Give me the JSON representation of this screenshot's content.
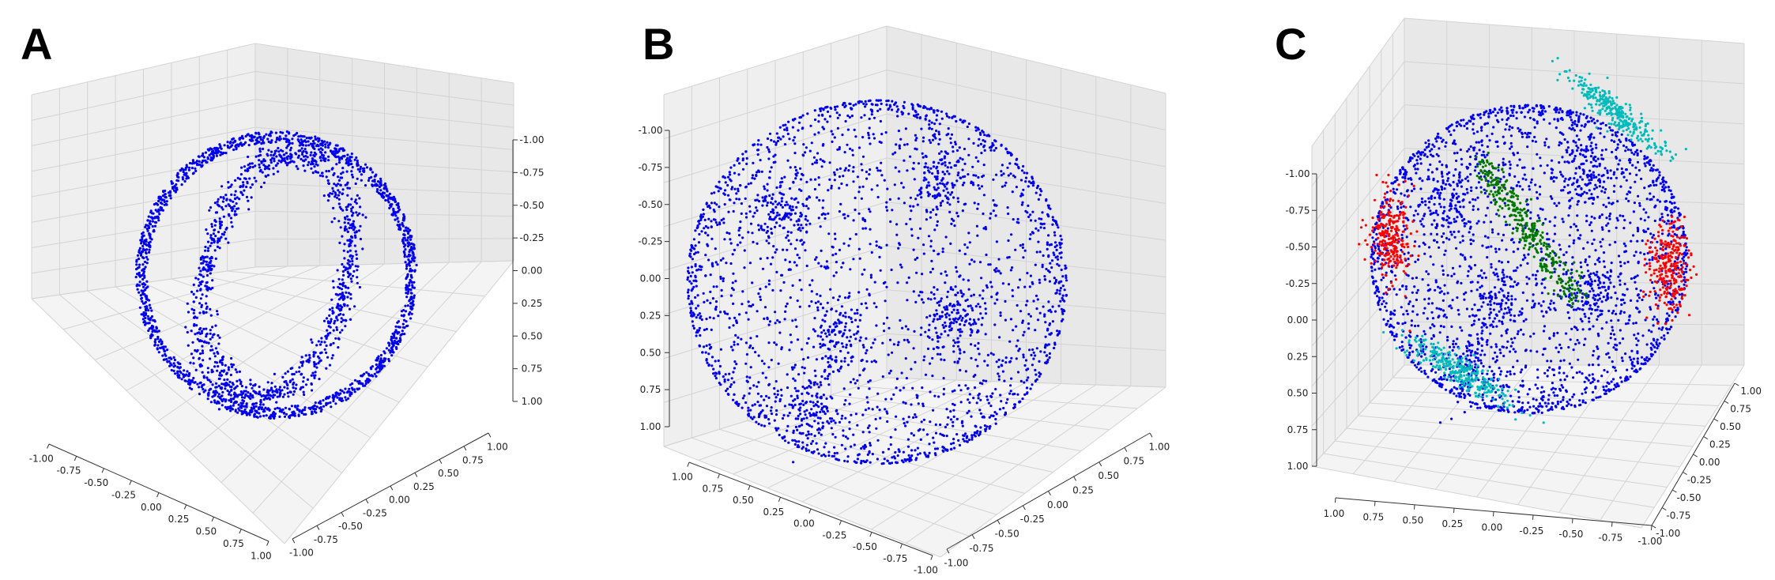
{
  "figure": {
    "background": "#ffffff",
    "pane_color": "#efefef",
    "grid_color": "#d3d3d3"
  },
  "chart_data": [
    {
      "panel": "A",
      "type": "scatter",
      "projection": "3d",
      "marker_color": "#0000ee",
      "x_ticks": [
        "-1.00",
        "-0.75",
        "-0.50",
        "-0.25",
        "0.00",
        "0.25",
        "0.50",
        "0.75",
        "1.00"
      ],
      "y_ticks": [
        "-1.00",
        "-0.75",
        "-0.50",
        "-0.25",
        "0.00",
        "0.25",
        "0.50",
        "0.75",
        "1.00"
      ],
      "z_ticks": [
        "1.00",
        "0.75",
        "0.50",
        "0.25",
        "0.00",
        "-0.25",
        "-0.50",
        "-0.75",
        "-1.00"
      ],
      "xlim": [
        -1,
        1
      ],
      "ylim": [
        -1,
        1
      ],
      "zlim": [
        -1,
        1
      ],
      "grid": true,
      "series": [
        {
          "color": "#0000ee",
          "description_points": 2500
        }
      ]
    },
    {
      "panel": "B",
      "type": "scatter",
      "projection": "3d",
      "marker_color": "#0000ee",
      "x_ticks": [
        "1.00",
        "0.75",
        "0.50",
        "0.25",
        "0.00",
        "-0.25",
        "-0.50",
        "-0.75",
        "-1.00"
      ],
      "y_ticks": [
        "-1.00",
        "-0.75",
        "-0.50",
        "-0.25",
        "0.00",
        "0.25",
        "0.50",
        "0.75",
        "1.00"
      ],
      "z_ticks": [
        "1.00",
        "0.75",
        "0.50",
        "0.25",
        "0.00",
        "-0.25",
        "-0.50",
        "-0.75",
        "-1.00"
      ],
      "xlim": [
        -1,
        1
      ],
      "ylim": [
        -1,
        1
      ],
      "zlim": [
        -1,
        1
      ],
      "grid": true,
      "series": [
        {
          "color": "#0000ee"
        }
      ]
    },
    {
      "panel": "C",
      "type": "scatter",
      "projection": "3d",
      "x_ticks": [
        "1.00",
        "0.75",
        "0.50",
        "0.25",
        "0.00",
        "-0.25",
        "-0.50",
        "-0.75",
        "-1.00"
      ],
      "y_ticks": [
        "-1.00",
        "-0.75",
        "-0.50",
        "-0.25",
        "0.00",
        "0.25",
        "0.50",
        "0.75",
        "1.00"
      ],
      "z_ticks": [
        "1.00",
        "0.75",
        "0.50",
        "0.25",
        "0.00",
        "-0.25",
        "-0.50",
        "-0.75",
        "-1.00"
      ],
      "xlim": [
        -1,
        1
      ],
      "ylim": [
        -1,
        1
      ],
      "zlim": [
        -1,
        1
      ],
      "grid": true,
      "series": [
        {
          "color": "#0000ee"
        },
        {
          "color": "#ff0000"
        },
        {
          "color": "#007700"
        },
        {
          "color": "#00bbbb"
        }
      ]
    }
  ]
}
